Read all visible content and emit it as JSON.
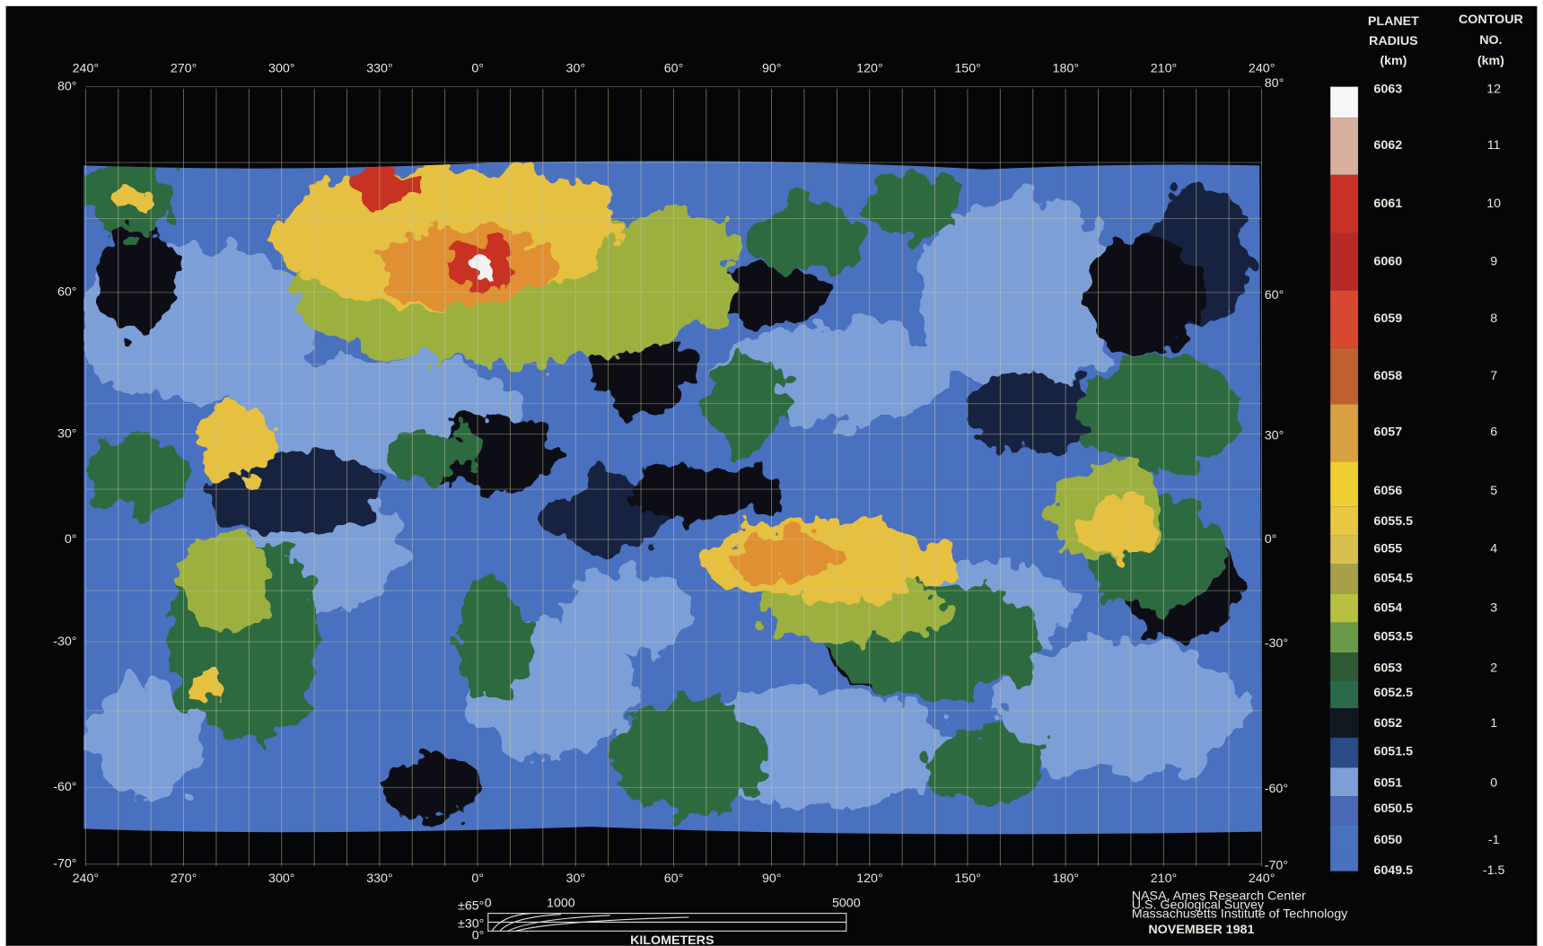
{
  "map": {
    "top_longitudes": [
      "240°",
      "270°",
      "300°",
      "330°",
      "0°",
      "30°",
      "60°",
      "90°",
      "120°",
      "150°",
      "180°",
      "210°",
      "240°"
    ],
    "bottom_longitudes": [
      "240°",
      "270°",
      "300°",
      "330°",
      "0°",
      "30°",
      "60°",
      "90°",
      "120°",
      "150°",
      "180°",
      "210°",
      "240°"
    ],
    "left_latitudes": [
      "80°",
      "60°",
      "30°",
      "0°",
      "-30°",
      "-60°",
      "-70°"
    ],
    "right_latitudes": [
      "80°",
      "60°",
      "30°",
      "0°",
      "-30°",
      "-60°",
      "-70°"
    ]
  },
  "legend": {
    "radius_header": [
      "PLANET",
      "RADIUS",
      "(km)"
    ],
    "contour_header": [
      "CONTOUR",
      "NO.",
      "(km)"
    ],
    "radius_labels": [
      "6063",
      "6062",
      "6061",
      "6060",
      "6059",
      "6058",
      "6057",
      "6056",
      "6055.5",
      "6055",
      "6054.5",
      "6054",
      "6053.5",
      "6053",
      "6052.5",
      "6052",
      "6051.5",
      "6051",
      "6050.5",
      "6050",
      "6049.5"
    ],
    "contour_labels": [
      "12",
      "11",
      "10",
      "9",
      "8",
      "7",
      "6",
      "5",
      "4",
      "3",
      "2",
      "1",
      "0",
      "-1",
      "-1.5"
    ],
    "band_colors": [
      "#f4f6f8",
      "#d8b0a0",
      "#c83028",
      "#b82a28",
      "#d84830",
      "#c06030",
      "#d8a040",
      "#f0d030",
      "#e8c840",
      "#d8c050",
      "#a8a048",
      "#b8c040",
      "#6a9a48",
      "#2f5a36",
      "#2a6a48",
      "#101820",
      "#2a4a88",
      "#7f9fd8",
      "#4a6ab8",
      "#4a70c0",
      "#4a70c0"
    ]
  },
  "scale": {
    "latitude_labels": [
      "±65°",
      "±30°",
      "0°"
    ],
    "distance_labels": [
      "0",
      "1000",
      "5000"
    ],
    "unit": "KILOMETERS"
  },
  "credits": [
    "NASA, Ames Research Center",
    "U.S. Geological Survey",
    "Massachusetts Institute of Technology"
  ],
  "date": "NOVEMBER 1981"
}
